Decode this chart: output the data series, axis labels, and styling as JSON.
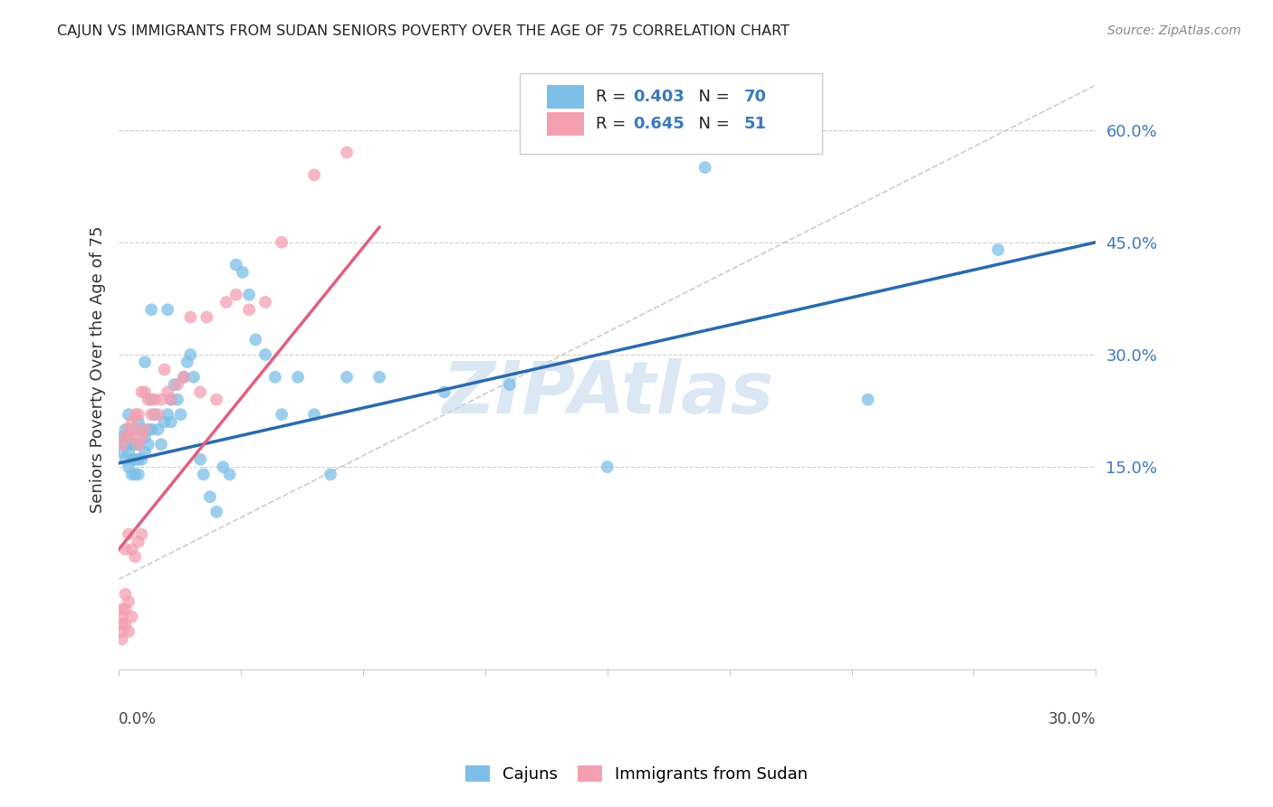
{
  "title": "CAJUN VS IMMIGRANTS FROM SUDAN SENIORS POVERTY OVER THE AGE OF 75 CORRELATION CHART",
  "source": "Source: ZipAtlas.com",
  "ylabel": "Seniors Poverty Over the Age of 75",
  "ytick_labels": [
    "15.0%",
    "30.0%",
    "45.0%",
    "60.0%"
  ],
  "ytick_values": [
    0.15,
    0.3,
    0.45,
    0.6
  ],
  "xmin": 0.0,
  "xmax": 0.3,
  "ymin": -0.12,
  "ymax": 0.68,
  "cajun_R": 0.403,
  "cajun_N": 70,
  "sudan_R": 0.645,
  "sudan_N": 51,
  "cajun_color": "#7dbfe8",
  "sudan_color": "#f4a0b0",
  "cajun_line_color": "#2a6aad",
  "sudan_line_color": "#e06080",
  "legend_label_cajun": "Cajuns",
  "legend_label_sudan": "Immigrants from Sudan",
  "watermark": "ZIPAtlas",
  "watermark_color": "#c5d8ee",
  "cajun_x": [
    0.001,
    0.001,
    0.002,
    0.002,
    0.002,
    0.003,
    0.003,
    0.003,
    0.003,
    0.003,
    0.004,
    0.004,
    0.004,
    0.005,
    0.005,
    0.005,
    0.005,
    0.006,
    0.006,
    0.006,
    0.006,
    0.007,
    0.007,
    0.008,
    0.008,
    0.008,
    0.009,
    0.009,
    0.01,
    0.01,
    0.01,
    0.011,
    0.012,
    0.013,
    0.014,
    0.015,
    0.015,
    0.016,
    0.016,
    0.017,
    0.018,
    0.019,
    0.02,
    0.021,
    0.022,
    0.023,
    0.025,
    0.026,
    0.028,
    0.03,
    0.032,
    0.034,
    0.036,
    0.038,
    0.04,
    0.042,
    0.045,
    0.048,
    0.05,
    0.055,
    0.06,
    0.065,
    0.07,
    0.08,
    0.1,
    0.12,
    0.15,
    0.18,
    0.23,
    0.27
  ],
  "cajun_y": [
    0.17,
    0.19,
    0.16,
    0.18,
    0.2,
    0.15,
    0.17,
    0.19,
    0.2,
    0.22,
    0.14,
    0.16,
    0.18,
    0.14,
    0.16,
    0.18,
    0.2,
    0.14,
    0.16,
    0.18,
    0.21,
    0.16,
    0.2,
    0.17,
    0.19,
    0.29,
    0.18,
    0.2,
    0.2,
    0.24,
    0.36,
    0.22,
    0.2,
    0.18,
    0.21,
    0.22,
    0.36,
    0.21,
    0.24,
    0.26,
    0.24,
    0.22,
    0.27,
    0.29,
    0.3,
    0.27,
    0.16,
    0.14,
    0.11,
    0.09,
    0.15,
    0.14,
    0.42,
    0.41,
    0.38,
    0.32,
    0.3,
    0.27,
    0.22,
    0.27,
    0.22,
    0.14,
    0.27,
    0.27,
    0.25,
    0.26,
    0.15,
    0.55,
    0.24,
    0.44
  ],
  "sudan_x": [
    0.001,
    0.001,
    0.001,
    0.001,
    0.001,
    0.001,
    0.002,
    0.002,
    0.002,
    0.002,
    0.002,
    0.003,
    0.003,
    0.003,
    0.003,
    0.004,
    0.004,
    0.004,
    0.004,
    0.005,
    0.005,
    0.005,
    0.006,
    0.006,
    0.006,
    0.007,
    0.007,
    0.007,
    0.008,
    0.008,
    0.009,
    0.01,
    0.011,
    0.012,
    0.013,
    0.014,
    0.015,
    0.016,
    0.018,
    0.02,
    0.022,
    0.025,
    0.027,
    0.03,
    0.033,
    0.036,
    0.04,
    0.045,
    0.05,
    0.06,
    0.07
  ],
  "sudan_y": [
    -0.08,
    -0.07,
    -0.06,
    -0.05,
    -0.04,
    0.18,
    -0.06,
    -0.04,
    -0.02,
    0.04,
    0.19,
    -0.07,
    -0.03,
    0.06,
    0.2,
    -0.05,
    0.04,
    0.19,
    0.21,
    0.03,
    0.2,
    0.22,
    0.05,
    0.18,
    0.22,
    0.06,
    0.19,
    0.25,
    0.2,
    0.25,
    0.24,
    0.22,
    0.24,
    0.22,
    0.24,
    0.28,
    0.25,
    0.24,
    0.26,
    0.27,
    0.35,
    0.25,
    0.35,
    0.24,
    0.37,
    0.38,
    0.36,
    0.37,
    0.45,
    0.54,
    0.57
  ],
  "cajun_line_x0": 0.0,
  "cajun_line_y0": 0.155,
  "cajun_line_x1": 0.3,
  "cajun_line_y1": 0.45,
  "sudan_line_x0": 0.0,
  "sudan_line_y0": 0.04,
  "sudan_line_x1": 0.08,
  "sudan_line_y1": 0.47
}
